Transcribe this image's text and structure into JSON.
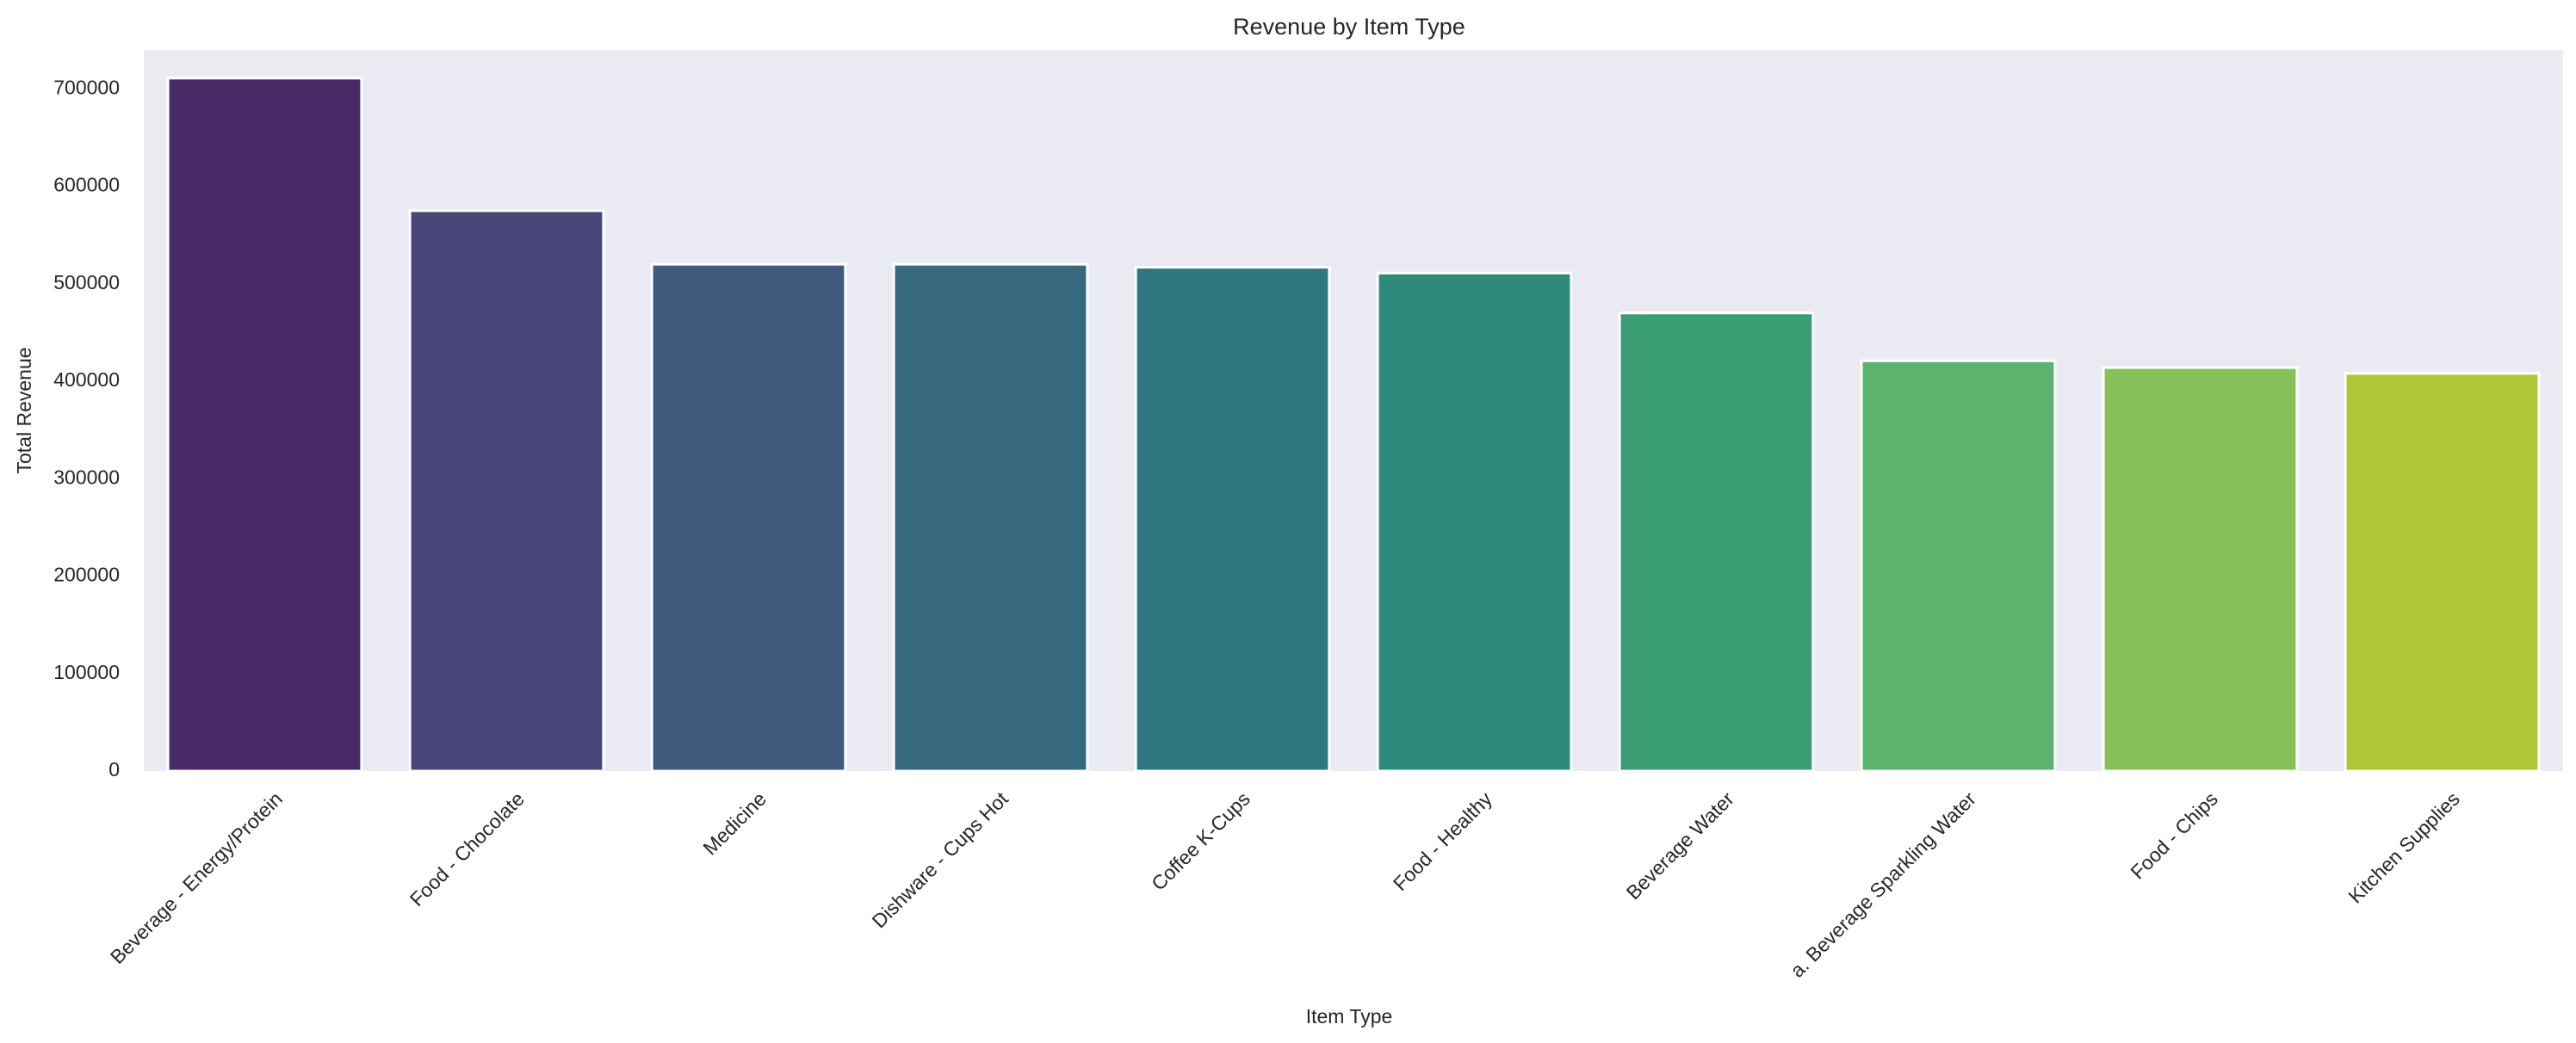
{
  "chart_data": {
    "type": "bar",
    "title": "Revenue by Item Type",
    "xlabel": "Item Type",
    "ylabel": "Total Revenue",
    "categories": [
      "Beverage - Energy/Protein",
      "Food - Chocolate",
      "Medicine",
      "Dishware - Cups Hot",
      "Coffee K-Cups",
      "Food - Healthy",
      "Beverage Water",
      "a. Beverage Sparkling Water",
      "Food - Chips",
      "Kitchen Supplies"
    ],
    "values": [
      711000,
      575000,
      520000,
      520000,
      517000,
      511000,
      470000,
      421000,
      414000,
      408000
    ],
    "colors": [
      "#482a66",
      "#484679",
      "#42597e",
      "#386a7f",
      "#30787f",
      "#2f8a7c",
      "#3a9d74",
      "#5db26e",
      "#87c05b",
      "#b0c637"
    ],
    "ylim": [
      0,
      740000
    ],
    "yticks": [
      0,
      100000,
      200000,
      300000,
      400000,
      500000,
      600000,
      700000
    ],
    "ytick_labels": [
      "0",
      "100000",
      "200000",
      "300000",
      "400000",
      "500000",
      "600000",
      "700000"
    ],
    "grid": false,
    "legend": "none",
    "plot_background": "#eaeaf2",
    "bar_edge_color": "#ffffff"
  }
}
